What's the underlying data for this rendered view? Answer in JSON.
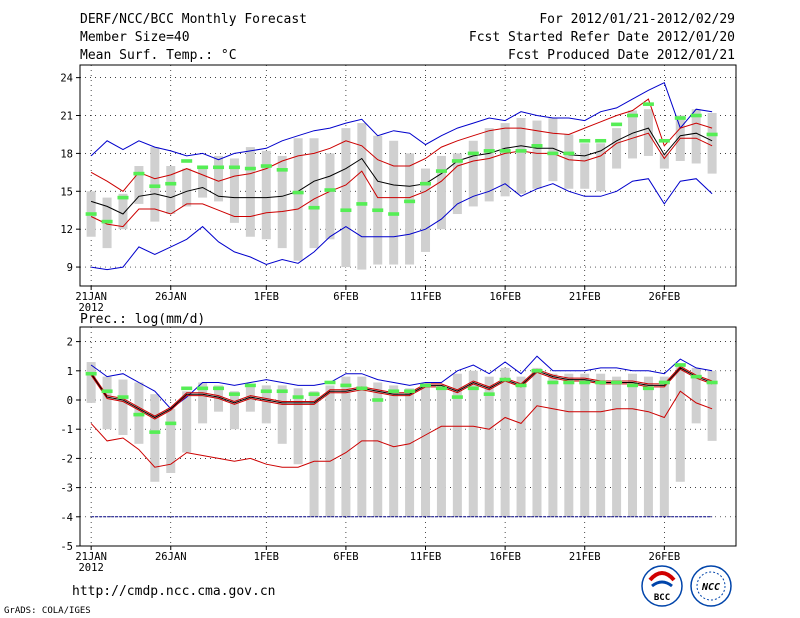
{
  "header": {
    "title": "DERF/NCC/BCC Monthly Forecast",
    "member_size": "Member Size=40",
    "variable": "Mean Surf. Temp.: °C",
    "period": "For 2012/01/21-2012/02/29",
    "refer_date": "Fcst Started Refer Date 2012/01/20",
    "produced_date": "Fcst Produced Date 2012/01/21"
  },
  "footer": {
    "url": "http://cmdp.ncc.cma.gov.cn",
    "credit": "GrADS: COLA/IGES",
    "logo_bcc": "BCC",
    "logo_ncc": "NCC"
  },
  "colors": {
    "box": "#d0d0d0",
    "median": "#55ee55",
    "mean": "#000000",
    "inner": "#cc0000",
    "outer": "#0000cc",
    "ref": "#000080"
  },
  "chart_data": [
    {
      "type": "box-plot-time-series",
      "title": "Mean Surf. Temp.: °C",
      "x_tick_labels": [
        "21JAN",
        "26JAN",
        "1FEB",
        "6FEB",
        "11FEB",
        "16FEB",
        "21FEB",
        "26FEB"
      ],
      "x_tick_days": [
        1,
        6,
        12,
        17,
        22,
        27,
        32,
        37
      ],
      "year_label": "2012",
      "n_days": 40,
      "ylim": [
        7.5,
        25
      ],
      "y_ticks": [
        9,
        12,
        15,
        18,
        21,
        24
      ],
      "y_tick_labels": [
        "9",
        "12",
        "15",
        "18",
        "21",
        "24"
      ],
      "series": {
        "outer_upper": [
          17.8,
          19.0,
          18.3,
          19.0,
          18.5,
          18.2,
          17.8,
          18.0,
          17.5,
          18.0,
          18.2,
          18.4,
          19.0,
          19.4,
          19.8,
          20.0,
          20.4,
          20.7,
          19.4,
          19.8,
          19.6,
          18.7,
          19.4,
          20.0,
          20.4,
          20.8,
          20.6,
          21.3,
          21.0,
          20.8,
          20.8,
          20.6,
          21.3,
          21.6,
          22.3,
          23.0,
          23.6,
          20.0,
          21.5,
          21.3
        ],
        "inner_upper": [
          16.5,
          15.8,
          15.0,
          16.5,
          16.0,
          16.3,
          16.8,
          16.3,
          15.8,
          16.2,
          16.4,
          16.8,
          17.4,
          17.8,
          18.0,
          18.4,
          19.0,
          18.6,
          17.5,
          17.0,
          17.0,
          17.6,
          18.5,
          19.0,
          19.4,
          19.8,
          20.0,
          20.0,
          19.8,
          19.6,
          19.5,
          20.0,
          20.5,
          21.0,
          21.4,
          22.3,
          18.6,
          20.0,
          20.4,
          20.0
        ],
        "mean": [
          14.2,
          13.8,
          13.2,
          14.6,
          14.8,
          14.5,
          15.0,
          15.3,
          14.6,
          14.5,
          14.5,
          14.5,
          14.6,
          15.0,
          15.8,
          16.2,
          16.8,
          17.6,
          15.8,
          15.5,
          15.4,
          15.6,
          16.4,
          17.4,
          17.8,
          18.0,
          18.4,
          18.6,
          18.4,
          18.4,
          17.9,
          17.8,
          18.2,
          19.0,
          19.6,
          20.0,
          17.9,
          19.4,
          19.6,
          19.0
        ],
        "inner_lower": [
          13.0,
          12.4,
          12.2,
          13.6,
          13.6,
          13.2,
          14.0,
          14.0,
          13.5,
          13.0,
          13.0,
          13.3,
          13.4,
          13.6,
          14.4,
          15.0,
          15.5,
          16.6,
          14.5,
          14.5,
          14.5,
          15.0,
          15.8,
          17.0,
          17.4,
          17.6,
          18.0,
          18.2,
          18.0,
          18.0,
          17.5,
          17.4,
          17.8,
          18.8,
          19.2,
          19.6,
          17.6,
          19.2,
          19.2,
          18.6
        ],
        "outer_lower": [
          9.0,
          8.8,
          9.0,
          10.6,
          10.0,
          10.6,
          11.2,
          12.2,
          11.0,
          10.2,
          9.8,
          9.2,
          9.6,
          9.3,
          10.2,
          11.4,
          12.2,
          11.4,
          11.4,
          11.4,
          11.6,
          12.0,
          12.8,
          14.0,
          14.6,
          15.0,
          15.6,
          14.6,
          15.2,
          15.6,
          15.0,
          14.6,
          14.6,
          15.0,
          15.8,
          16.0,
          14.0,
          15.8,
          16.0,
          14.8
        ],
        "box_top": [
          15.0,
          14.5,
          14.8,
          17.0,
          18.5,
          17.0,
          16.8,
          16.8,
          17.8,
          17.6,
          18.5,
          18.2,
          17.8,
          19.2,
          19.2,
          18.0,
          20.0,
          20.4,
          19.4,
          19.0,
          18.0,
          16.8,
          17.8,
          18.0,
          19.0,
          20.0,
          20.4,
          20.8,
          20.6,
          20.8,
          19.5,
          18.8,
          18.8,
          20.0,
          21.4,
          21.5,
          18.0,
          21.0,
          21.5,
          21.2
        ],
        "box_bottom": [
          11.4,
          10.5,
          12.0,
          14.0,
          12.6,
          13.2,
          13.8,
          14.5,
          14.2,
          12.5,
          11.4,
          11.2,
          10.5,
          9.5,
          10.5,
          11.2,
          9.0,
          8.8,
          9.2,
          9.2,
          9.2,
          10.2,
          12.0,
          13.2,
          13.8,
          14.2,
          14.6,
          14.8,
          15.2,
          15.8,
          15.2,
          15.2,
          15.0,
          16.8,
          17.6,
          17.8,
          16.8,
          17.4,
          17.2,
          16.4
        ],
        "median": [
          13.2,
          12.6,
          14.5,
          16.4,
          15.4,
          15.6,
          17.4,
          16.9,
          16.9,
          16.9,
          16.8,
          17.0,
          16.7,
          14.9,
          13.7,
          15.1,
          13.5,
          14.0,
          13.5,
          13.2,
          14.2,
          15.6,
          16.6,
          17.4,
          18.0,
          18.2,
          18.2,
          18.2,
          18.6,
          18.0,
          18.0,
          19.0,
          19.0,
          20.3,
          21.0,
          21.9,
          19.0,
          20.8,
          21.0,
          19.5
        ]
      }
    },
    {
      "type": "box-plot-time-series",
      "title": "Prec.: log(mm/d)",
      "x_tick_labels": [
        "21JAN",
        "26JAN",
        "1FEB",
        "6FEB",
        "11FEB",
        "16FEB",
        "21FEB",
        "26FEB"
      ],
      "x_tick_days": [
        1,
        6,
        12,
        17,
        22,
        27,
        32,
        37
      ],
      "year_label": "2012",
      "n_days": 40,
      "ylim": [
        -5,
        2.5
      ],
      "y_ticks": [
        -5,
        -4,
        -3,
        -2,
        -1,
        0,
        1,
        2
      ],
      "y_tick_labels": [
        "-5",
        "-4",
        "-3",
        "-2",
        "-1",
        "0",
        "1",
        "2"
      ],
      "reference_line": -4,
      "series": {
        "outer_upper": [
          1.2,
          0.8,
          0.9,
          0.6,
          0.3,
          -0.3,
          0.1,
          0.6,
          0.6,
          0.5,
          0.6,
          0.7,
          0.6,
          0.5,
          0.5,
          0.6,
          0.9,
          0.9,
          0.7,
          0.6,
          0.5,
          0.6,
          0.6,
          1.0,
          1.2,
          0.9,
          1.3,
          0.9,
          1.5,
          1.0,
          1.0,
          1.0,
          1.1,
          1.1,
          1.0,
          1.0,
          0.9,
          1.4,
          1.1,
          1.0
        ],
        "mean": [
          0.9,
          0.1,
          0.0,
          -0.3,
          -0.6,
          -0.3,
          0.2,
          0.2,
          0.1,
          -0.1,
          0.1,
          0.0,
          -0.1,
          -0.1,
          -0.1,
          0.3,
          0.3,
          0.4,
          0.3,
          0.2,
          0.2,
          0.5,
          0.5,
          0.3,
          0.6,
          0.4,
          0.7,
          0.5,
          1.0,
          0.8,
          0.7,
          0.7,
          0.6,
          0.6,
          0.6,
          0.5,
          0.5,
          1.1,
          0.8,
          0.6
        ],
        "inner_upper": [
          0.95,
          0.15,
          0.05,
          -0.25,
          -0.55,
          -0.25,
          0.25,
          0.25,
          0.15,
          -0.05,
          0.15,
          0.05,
          -0.05,
          -0.05,
          -0.05,
          0.35,
          0.35,
          0.45,
          0.35,
          0.25,
          0.25,
          0.55,
          0.55,
          0.35,
          0.65,
          0.45,
          0.75,
          0.55,
          1.05,
          0.85,
          0.75,
          0.75,
          0.65,
          0.65,
          0.65,
          0.55,
          0.55,
          1.15,
          0.85,
          0.65
        ],
        "inner_lower": [
          0.85,
          0.05,
          -0.05,
          -0.35,
          -0.65,
          -0.35,
          0.15,
          0.15,
          0.05,
          -0.15,
          0.05,
          -0.05,
          -0.15,
          -0.15,
          -0.15,
          0.25,
          0.25,
          0.35,
          0.25,
          0.15,
          0.15,
          0.45,
          0.45,
          0.25,
          0.55,
          0.35,
          0.65,
          0.45,
          0.95,
          0.75,
          0.65,
          0.65,
          0.55,
          0.55,
          0.55,
          0.45,
          0.45,
          1.05,
          0.75,
          0.55
        ],
        "red_lower": [
          -0.8,
          -1.4,
          -1.3,
          -1.7,
          -2.3,
          -2.2,
          -1.8,
          -1.9,
          -2.0,
          -2.1,
          -2.0,
          -2.2,
          -2.3,
          -2.3,
          -2.1,
          -2.1,
          -1.8,
          -1.4,
          -1.4,
          -1.6,
          -1.5,
          -1.2,
          -0.9,
          -0.9,
          -0.9,
          -1.0,
          -0.6,
          -0.8,
          -0.2,
          -0.3,
          -0.4,
          -0.4,
          -0.4,
          -0.3,
          -0.3,
          -0.4,
          -0.6,
          0.3,
          -0.1,
          -0.3
        ],
        "box_top": [
          1.3,
          0.8,
          0.7,
          0.6,
          0.2,
          -0.3,
          0.3,
          0.6,
          0.5,
          0.3,
          0.5,
          0.5,
          0.5,
          0.4,
          0.3,
          0.5,
          0.8,
          0.8,
          0.6,
          0.5,
          0.4,
          0.5,
          0.5,
          0.9,
          1.0,
          0.8,
          1.1,
          0.8,
          1.1,
          0.9,
          0.9,
          0.9,
          0.9,
          0.8,
          0.9,
          0.8,
          0.8,
          1.2,
          1.1,
          1.0
        ],
        "box_bottom": [
          -0.1,
          -1.0,
          -1.2,
          -1.5,
          -2.8,
          -2.5,
          -1.8,
          -0.8,
          -0.4,
          -1.0,
          -0.4,
          -0.8,
          -1.5,
          -2.2,
          -4.0,
          -4.0,
          -4.0,
          -4.0,
          -4.0,
          -4.0,
          -4.0,
          -4.0,
          -4.0,
          -4.0,
          -4.0,
          -4.0,
          -4.0,
          -4.0,
          -4.0,
          -4.0,
          -4.0,
          -4.0,
          -4.0,
          -4.0,
          -4.0,
          -4.0,
          -4.0,
          -2.8,
          -0.8,
          -1.4
        ],
        "median": [
          0.9,
          0.3,
          0.1,
          -0.5,
          -1.1,
          -0.8,
          0.4,
          0.4,
          0.4,
          0.2,
          0.5,
          0.3,
          0.3,
          0.1,
          0.2,
          0.6,
          0.5,
          0.4,
          0.0,
          0.3,
          0.3,
          0.5,
          0.4,
          0.1,
          0.4,
          0.2,
          0.7,
          0.5,
          1.0,
          0.6,
          0.6,
          0.6,
          0.6,
          0.6,
          0.5,
          0.4,
          0.6,
          1.2,
          0.8,
          0.6
        ]
      }
    }
  ]
}
